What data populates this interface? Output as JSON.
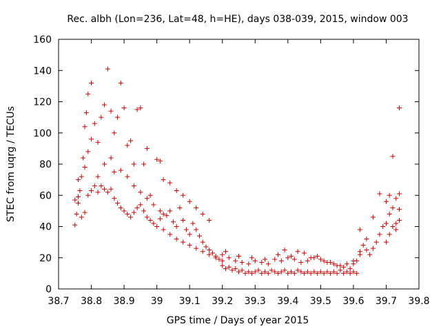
{
  "chart_data": {
    "type": "scatter",
    "title": "Rec. albh (Lon=236, Lat=48, h=HE), days 038-039, 2015, window 003",
    "xlabel": "GPS time / Days of year 2015",
    "ylabel": "STEC from uqrg / TECUs",
    "xlim": [
      38.7,
      39.8
    ],
    "ylim": [
      0,
      160
    ],
    "xticks": [
      "38.7",
      "38.8",
      "38.9",
      "39",
      "39.1",
      "39.2",
      "39.3",
      "39.4",
      "39.5",
      "39.6",
      "39.7",
      "39.8"
    ],
    "yticks": [
      "0",
      "20",
      "40",
      "60",
      "80",
      "100",
      "120",
      "140",
      "160"
    ],
    "marker": "plus",
    "color": "#cc0000",
    "grid": false,
    "series": [
      {
        "points": [
          [
            38.75,
            41
          ],
          [
            38.755,
            48
          ],
          [
            38.76,
            55
          ],
          [
            38.765,
            63
          ],
          [
            38.77,
            72
          ],
          [
            38.775,
            84
          ],
          [
            38.78,
            104
          ],
          [
            38.785,
            113
          ],
          [
            38.79,
            125
          ],
          [
            38.8,
            132
          ],
          [
            38.81,
            106
          ],
          [
            38.82,
            94
          ],
          [
            38.83,
            110
          ],
          [
            38.84,
            118
          ],
          [
            38.85,
            141
          ],
          [
            38.86,
            114
          ],
          [
            38.87,
            100
          ],
          [
            38.88,
            110
          ],
          [
            38.89,
            132
          ],
          [
            38.9,
            116
          ],
          [
            38.91,
            92
          ],
          [
            38.92,
            95
          ],
          [
            38.93,
            80
          ],
          [
            38.94,
            115
          ],
          [
            38.95,
            116
          ],
          [
            38.96,
            80
          ],
          [
            38.97,
            90
          ],
          [
            38.98,
            60
          ],
          [
            38.75,
            57
          ],
          [
            38.76,
            59
          ],
          [
            38.77,
            46
          ],
          [
            38.78,
            49
          ],
          [
            38.79,
            60
          ],
          [
            38.8,
            63
          ],
          [
            38.81,
            66
          ],
          [
            38.82,
            62
          ],
          [
            38.83,
            66
          ],
          [
            38.84,
            64
          ],
          [
            38.85,
            62
          ],
          [
            38.86,
            64
          ],
          [
            38.87,
            58
          ],
          [
            38.88,
            55
          ],
          [
            38.89,
            52
          ],
          [
            38.9,
            50
          ],
          [
            38.91,
            48
          ],
          [
            38.92,
            46
          ],
          [
            38.93,
            49
          ],
          [
            38.94,
            52
          ],
          [
            38.95,
            54
          ],
          [
            38.96,
            50
          ],
          [
            38.97,
            46
          ],
          [
            38.98,
            44
          ],
          [
            38.99,
            42
          ],
          [
            39.0,
            40
          ],
          [
            38.76,
            70
          ],
          [
            38.78,
            78
          ],
          [
            38.79,
            88
          ],
          [
            38.8,
            96
          ],
          [
            38.82,
            72
          ],
          [
            38.84,
            80
          ],
          [
            38.86,
            84
          ],
          [
            38.87,
            75
          ],
          [
            38.89,
            76
          ],
          [
            38.91,
            72
          ],
          [
            38.93,
            66
          ],
          [
            38.95,
            62
          ],
          [
            38.97,
            58
          ],
          [
            38.99,
            54
          ],
          [
            39.01,
            50
          ],
          [
            39.0,
            83
          ],
          [
            39.01,
            82
          ],
          [
            39.02,
            70
          ],
          [
            39.04,
            68
          ],
          [
            39.06,
            63
          ],
          [
            39.08,
            60
          ],
          [
            39.1,
            56
          ],
          [
            39.12,
            52
          ],
          [
            39.14,
            48
          ],
          [
            39.16,
            44
          ],
          [
            39.01,
            45
          ],
          [
            39.02,
            48
          ],
          [
            39.03,
            47
          ],
          [
            39.04,
            50
          ],
          [
            39.05,
            43
          ],
          [
            39.06,
            40
          ],
          [
            39.07,
            52
          ],
          [
            39.08,
            44
          ],
          [
            39.09,
            38
          ],
          [
            39.1,
            35
          ],
          [
            39.02,
            38
          ],
          [
            39.04,
            35
          ],
          [
            39.06,
            32
          ],
          [
            39.08,
            30
          ],
          [
            39.1,
            28
          ],
          [
            39.12,
            26
          ],
          [
            39.14,
            24
          ],
          [
            39.16,
            22
          ],
          [
            39.18,
            20
          ],
          [
            39.11,
            42
          ],
          [
            39.12,
            38
          ],
          [
            39.13,
            34
          ],
          [
            39.14,
            30
          ],
          [
            39.15,
            27
          ],
          [
            39.16,
            25
          ],
          [
            39.17,
            23
          ],
          [
            39.18,
            21
          ],
          [
            39.19,
            19
          ],
          [
            39.2,
            18
          ],
          [
            39.2,
            15
          ],
          [
            39.21,
            13
          ],
          [
            39.22,
            14
          ],
          [
            39.23,
            12
          ],
          [
            39.24,
            13
          ],
          [
            39.25,
            11
          ],
          [
            39.26,
            12
          ],
          [
            39.27,
            10
          ],
          [
            39.28,
            11
          ],
          [
            39.29,
            10
          ],
          [
            39.3,
            11
          ],
          [
            39.31,
            12
          ],
          [
            39.32,
            10
          ],
          [
            39.33,
            11
          ],
          [
            39.34,
            10
          ],
          [
            39.35,
            12
          ],
          [
            39.36,
            11
          ],
          [
            39.37,
            10
          ],
          [
            39.38,
            11
          ],
          [
            39.39,
            12
          ],
          [
            39.4,
            10
          ],
          [
            39.41,
            11
          ],
          [
            39.42,
            10
          ],
          [
            39.43,
            12
          ],
          [
            39.44,
            11
          ],
          [
            39.45,
            10
          ],
          [
            39.46,
            11
          ],
          [
            39.47,
            10
          ],
          [
            39.48,
            11
          ],
          [
            39.49,
            10
          ],
          [
            39.5,
            11
          ],
          [
            39.51,
            10
          ],
          [
            39.52,
            11
          ],
          [
            39.53,
            10
          ],
          [
            39.54,
            11
          ],
          [
            39.55,
            10
          ],
          [
            39.56,
            12
          ],
          [
            39.57,
            10
          ],
          [
            39.58,
            11
          ],
          [
            39.59,
            10
          ],
          [
            39.6,
            11
          ],
          [
            39.61,
            10
          ],
          [
            39.2,
            22
          ],
          [
            39.22,
            20
          ],
          [
            39.24,
            18
          ],
          [
            39.26,
            17
          ],
          [
            39.28,
            16
          ],
          [
            39.3,
            18
          ],
          [
            39.32,
            17
          ],
          [
            39.34,
            16
          ],
          [
            39.36,
            19
          ],
          [
            39.38,
            18
          ],
          [
            39.4,
            20
          ],
          [
            39.42,
            19
          ],
          [
            39.44,
            17
          ],
          [
            39.46,
            18
          ],
          [
            39.48,
            20
          ],
          [
            39.5,
            19
          ],
          [
            39.52,
            17
          ],
          [
            39.54,
            16
          ],
          [
            39.56,
            15
          ],
          [
            39.58,
            16
          ],
          [
            39.6,
            18
          ],
          [
            39.62,
            22
          ],
          [
            39.21,
            24
          ],
          [
            39.25,
            21
          ],
          [
            39.29,
            20
          ],
          [
            39.33,
            19
          ],
          [
            39.37,
            22
          ],
          [
            39.39,
            25
          ],
          [
            39.41,
            21
          ],
          [
            39.43,
            24
          ],
          [
            39.45,
            23
          ],
          [
            39.47,
            20
          ],
          [
            39.49,
            21
          ],
          [
            39.51,
            18
          ],
          [
            39.53,
            17
          ],
          [
            39.55,
            15
          ],
          [
            39.57,
            14
          ],
          [
            39.59,
            13
          ],
          [
            39.6,
            16
          ],
          [
            39.61,
            18
          ],
          [
            39.62,
            24
          ],
          [
            39.63,
            28
          ],
          [
            39.64,
            25
          ],
          [
            39.65,
            22
          ],
          [
            39.66,
            26
          ],
          [
            39.67,
            30
          ],
          [
            39.68,
            35
          ],
          [
            39.69,
            40
          ],
          [
            39.7,
            42
          ],
          [
            39.71,
            48
          ],
          [
            39.72,
            52
          ],
          [
            39.73,
            58
          ],
          [
            39.74,
            61
          ],
          [
            39.62,
            38
          ],
          [
            39.64,
            32
          ],
          [
            39.66,
            46
          ],
          [
            39.68,
            61
          ],
          [
            39.7,
            56
          ],
          [
            39.71,
            60
          ],
          [
            39.72,
            40
          ],
          [
            39.73,
            42
          ],
          [
            39.74,
            51
          ],
          [
            39.72,
            85
          ],
          [
            39.74,
            116
          ],
          [
            39.7,
            30
          ],
          [
            39.71,
            35
          ],
          [
            39.73,
            38
          ],
          [
            39.74,
            44
          ]
        ]
      }
    ]
  }
}
